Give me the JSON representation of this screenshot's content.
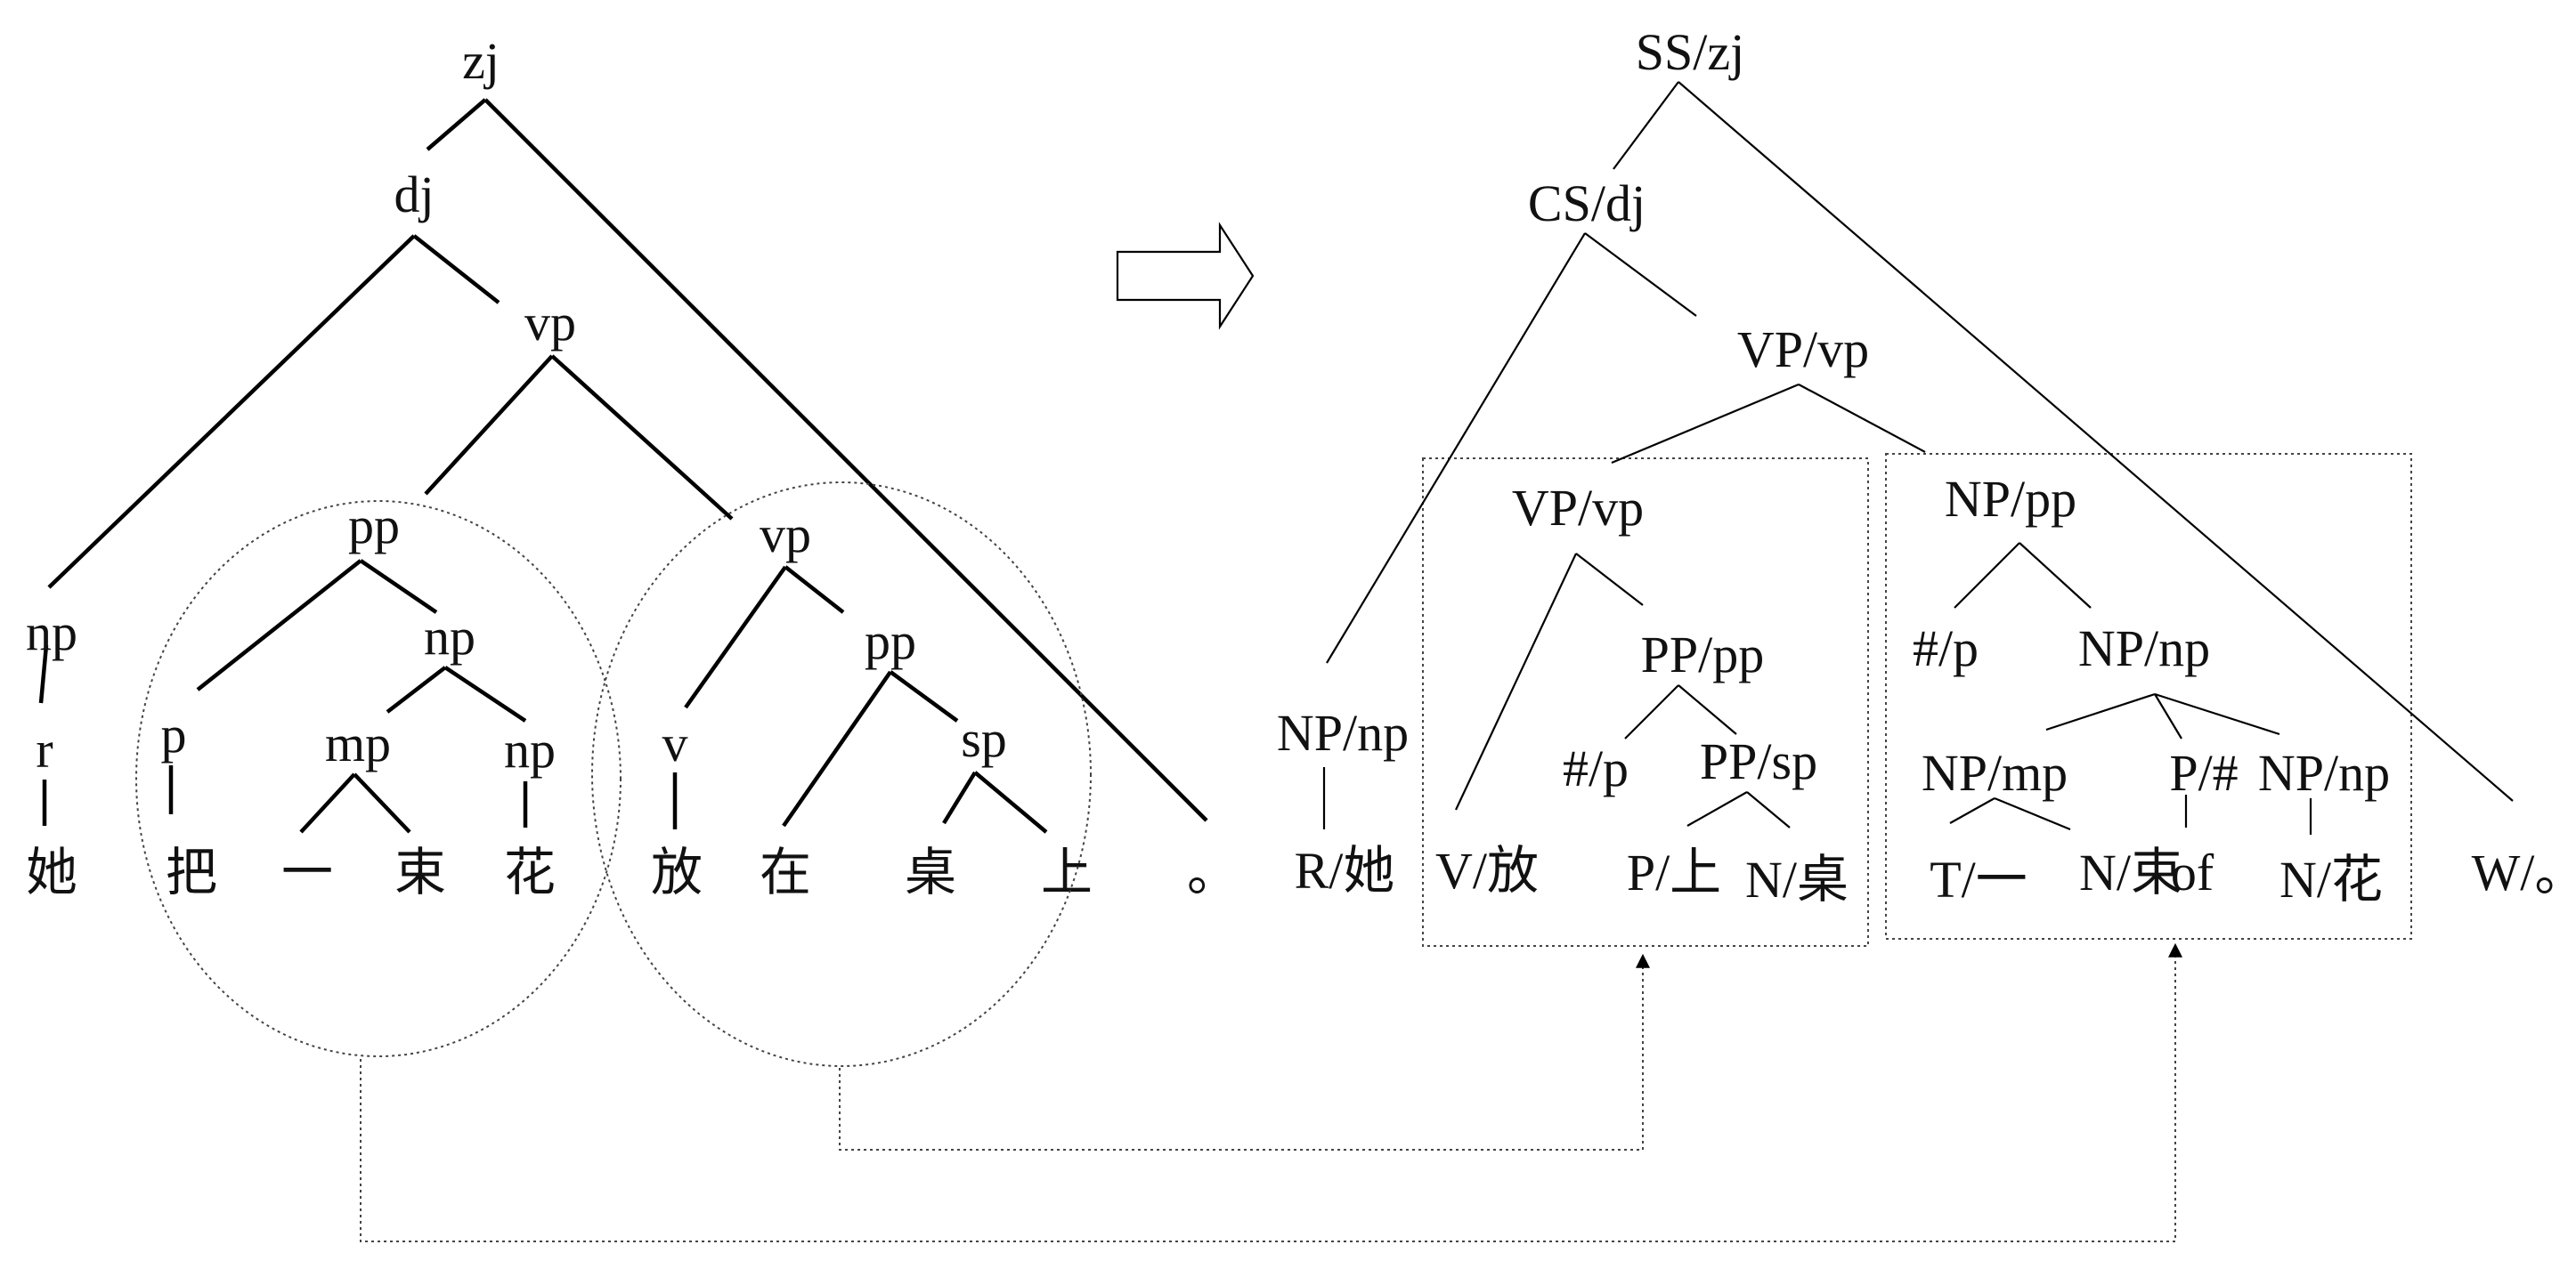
{
  "left_tree": {
    "nodes": [
      {
        "id": "zj",
        "label": "zj"
      },
      {
        "id": "dj",
        "label": "dj"
      },
      {
        "id": "vp1",
        "label": "vp"
      },
      {
        "id": "np1",
        "label": "np"
      },
      {
        "id": "r",
        "label": "r"
      },
      {
        "id": "pp1",
        "label": "pp"
      },
      {
        "id": "p",
        "label": "p"
      },
      {
        "id": "np2",
        "label": "np"
      },
      {
        "id": "mp",
        "label": "mp"
      },
      {
        "id": "np3",
        "label": "np"
      },
      {
        "id": "vp2",
        "label": "vp"
      },
      {
        "id": "v",
        "label": "v"
      },
      {
        "id": "pp2",
        "label": "pp"
      },
      {
        "id": "sp",
        "label": "sp"
      }
    ],
    "words": [
      "她",
      "把",
      "一",
      "束",
      "花",
      "放",
      "在",
      "桌",
      "上",
      "。"
    ]
  },
  "right_tree": {
    "nodes": [
      {
        "id": "SS",
        "label": "SS/zj"
      },
      {
        "id": "CS",
        "label": "CS/dj"
      },
      {
        "id": "VPvp1",
        "label": "VP/vp"
      },
      {
        "id": "VPvp2",
        "label": "VP/vp"
      },
      {
        "id": "NPpp",
        "label": "NP/pp"
      },
      {
        "id": "NPnp1",
        "label": "NP/np"
      },
      {
        "id": "PPpp",
        "label": "PP/pp"
      },
      {
        "id": "hashp1",
        "label": "#/p"
      },
      {
        "id": "PPsp",
        "label": "PP/sp"
      },
      {
        "id": "hashp2",
        "label": "#/p"
      },
      {
        "id": "NPnp2",
        "label": "NP/np"
      },
      {
        "id": "NPmp",
        "label": "NP/mp"
      },
      {
        "id": "Phash",
        "label": "P/#"
      },
      {
        "id": "NPnp3",
        "label": "NP/np"
      }
    ],
    "leaves": [
      "R/她",
      "V/放",
      "P/上",
      "N/桌",
      "T/一",
      "N/束",
      "of",
      "N/花",
      "W/。"
    ]
  }
}
